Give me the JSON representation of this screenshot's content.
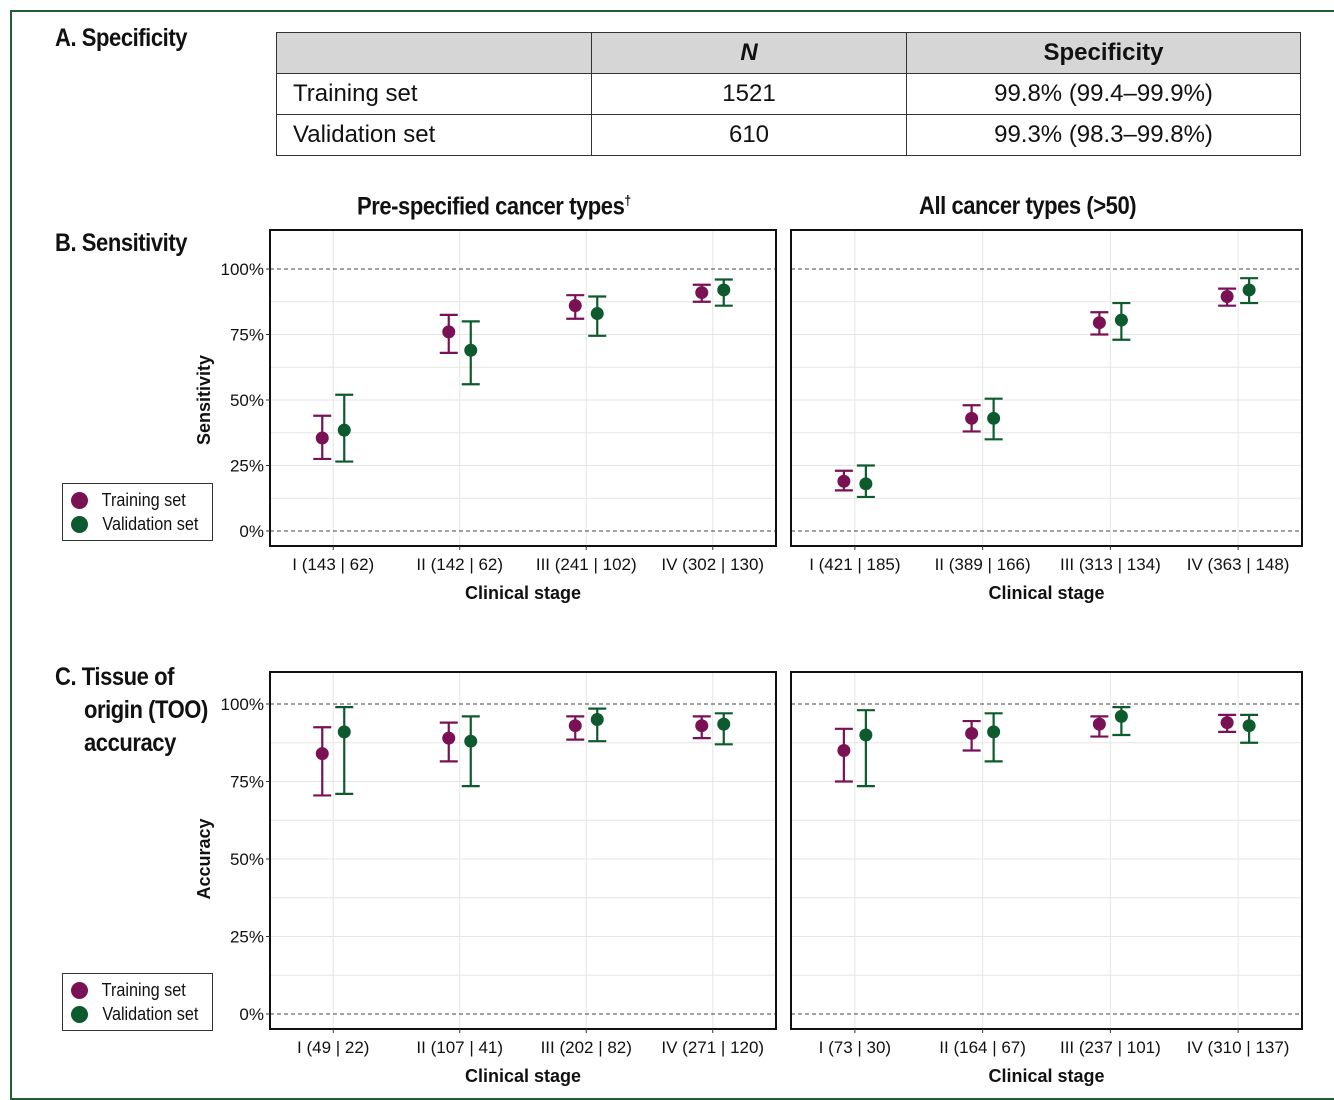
{
  "colors": {
    "training": "#7a1154",
    "validation": "#0c5a2e",
    "frame": "#1f5e36",
    "grid": "#e6e6e6"
  },
  "section_a": {
    "title": "A. Specificity",
    "table": {
      "headers": [
        "",
        "N",
        "Specificity"
      ],
      "rows": [
        [
          "Training set",
          "1521",
          "99.8% (99.4–99.9%)"
        ],
        [
          "Validation set",
          "610",
          "99.3% (98.3–99.8%)"
        ]
      ]
    }
  },
  "section_b": {
    "title": "B. Sensitivity"
  },
  "section_c": {
    "title_lines": [
      "C. Tissue of",
      "origin (TOO)",
      "accuracy"
    ]
  },
  "panel_titles": {
    "left": "Pre-specified cancer types",
    "left_mark": "†",
    "right": "All cancer types (>50)"
  },
  "legend": {
    "training": "Training set",
    "validation": "Validation set"
  },
  "chart_data": [
    {
      "type": "scatter",
      "panel": "B-left",
      "title": "Pre-specified cancer types†",
      "ylabel": "Sensitivity",
      "xlabel": "Clinical stage",
      "ylim": [
        0,
        100
      ],
      "yticks": [
        "0%",
        "25%",
        "50%",
        "75%",
        "100%"
      ],
      "categories": [
        "I (143 | 62)",
        "II (142 | 62)",
        "III (241 | 102)",
        "IV (302 | 130)"
      ],
      "series": [
        {
          "name": "Training set",
          "values": [
            35.5,
            76.0,
            86.0,
            91.0
          ],
          "ci_low": [
            27.5,
            68.0,
            81.0,
            87.5
          ],
          "ci_high": [
            44.0,
            82.5,
            90.0,
            94.0
          ]
        },
        {
          "name": "Validation set",
          "values": [
            38.5,
            69.0,
            83.0,
            92.0
          ],
          "ci_low": [
            26.5,
            56.0,
            74.5,
            86.0
          ],
          "ci_high": [
            52.0,
            80.0,
            89.5,
            96.0
          ]
        }
      ]
    },
    {
      "type": "scatter",
      "panel": "B-right",
      "title": "All cancer types (>50)",
      "xlabel": "Clinical stage",
      "ylim": [
        0,
        100
      ],
      "categories": [
        "I (421 | 185)",
        "II (389 | 166)",
        "III (313 | 134)",
        "IV (363 | 148)"
      ],
      "series": [
        {
          "name": "Training set",
          "values": [
            19.0,
            43.0,
            79.5,
            89.5
          ],
          "ci_low": [
            15.5,
            38.0,
            75.0,
            86.0
          ],
          "ci_high": [
            23.0,
            48.0,
            83.5,
            92.5
          ]
        },
        {
          "name": "Validation set",
          "values": [
            18.0,
            43.0,
            80.5,
            92.0
          ],
          "ci_low": [
            13.0,
            35.0,
            73.0,
            87.0
          ],
          "ci_high": [
            25.0,
            50.5,
            87.0,
            96.5
          ]
        }
      ]
    },
    {
      "type": "scatter",
      "panel": "C-left",
      "ylabel": "Accuracy",
      "xlabel": "Clinical stage",
      "ylim": [
        0,
        100
      ],
      "yticks": [
        "0%",
        "25%",
        "50%",
        "75%",
        "100%"
      ],
      "categories": [
        "I (49 | 22)",
        "II (107 | 41)",
        "III (202 | 82)",
        "IV (271 | 120)"
      ],
      "series": [
        {
          "name": "Training set",
          "values": [
            84.0,
            89.0,
            93.0,
            93.0
          ],
          "ci_low": [
            70.5,
            81.5,
            88.5,
            89.0
          ],
          "ci_high": [
            92.5,
            94.0,
            96.0,
            96.0
          ]
        },
        {
          "name": "Validation set",
          "values": [
            91.0,
            88.0,
            95.0,
            93.5
          ],
          "ci_low": [
            71.0,
            73.5,
            88.0,
            87.0
          ],
          "ci_high": [
            99.0,
            96.0,
            98.5,
            97.0
          ]
        }
      ]
    },
    {
      "type": "scatter",
      "panel": "C-right",
      "xlabel": "Clinical stage",
      "ylim": [
        0,
        100
      ],
      "categories": [
        "I (73 | 30)",
        "II (164 | 67)",
        "III (237 | 101)",
        "IV (310 | 137)"
      ],
      "series": [
        {
          "name": "Training set",
          "values": [
            85.0,
            90.5,
            93.5,
            94.0
          ],
          "ci_low": [
            75.0,
            85.0,
            89.5,
            91.0
          ],
          "ci_high": [
            92.0,
            94.5,
            96.0,
            96.5
          ]
        },
        {
          "name": "Validation set",
          "values": [
            90.0,
            91.0,
            96.0,
            93.0
          ],
          "ci_low": [
            73.5,
            81.5,
            90.0,
            87.5
          ],
          "ci_high": [
            98.0,
            97.0,
            99.0,
            96.5
          ]
        }
      ]
    }
  ]
}
